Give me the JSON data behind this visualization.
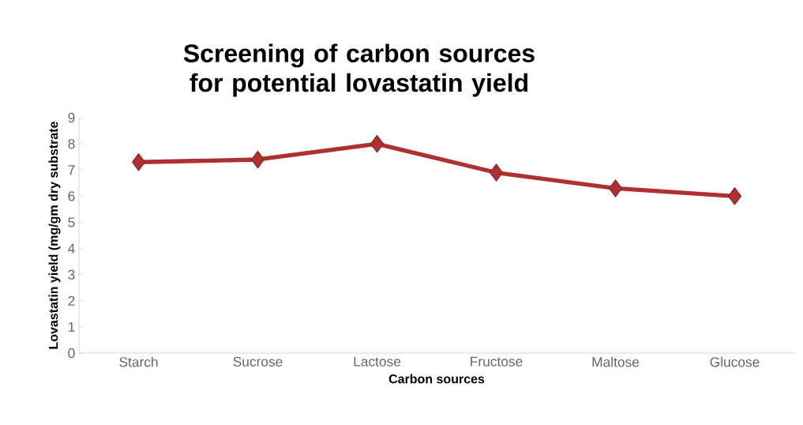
{
  "chart_data": {
    "type": "line",
    "title": "Screening of carbon sources for potential lovastatin yield",
    "xlabel": "Carbon sources",
    "ylabel": "Lovastatin yield (mg/gm dry substrate",
    "categories": [
      "Starch",
      "Sucrose",
      "Lactose",
      "Fructose",
      "Maltose",
      "Glucose"
    ],
    "values": [
      7.3,
      7.4,
      8.0,
      6.9,
      6.3,
      6.0
    ],
    "color": "#b03030",
    "ylim": [
      0,
      9
    ],
    "yticks": [
      0,
      1,
      2,
      3,
      4,
      5,
      6,
      7,
      8,
      9
    ],
    "marker": "diamond",
    "line_style": "solid",
    "grid": false
  }
}
